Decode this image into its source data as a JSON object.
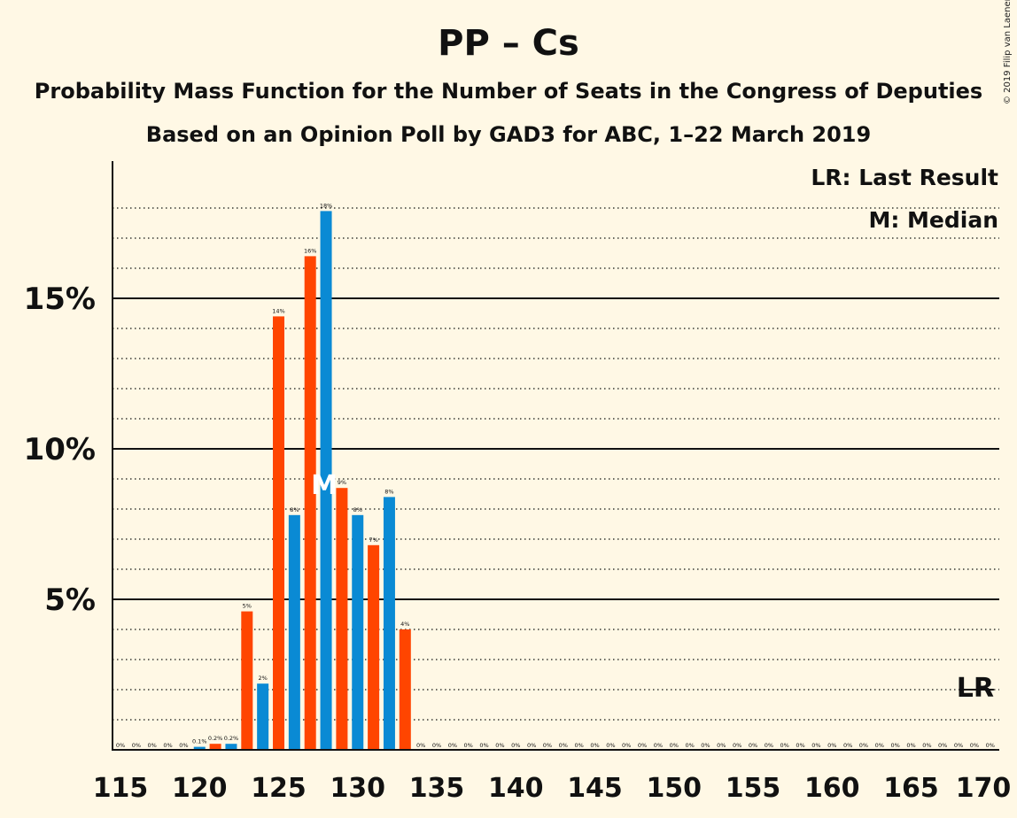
{
  "title": "PP – Cs",
  "subtitle1": "Probability Mass Function for the Number of Seats in the Congress of Deputies",
  "subtitle2": "Based on an Opinion Poll by GAD3 for ABC, 1–22 March 2019",
  "copyright": "© 2019 Filip van Laenen",
  "legend": {
    "lr": "LR: Last Result",
    "m": "M: Median"
  },
  "markers": {
    "median_label": "M",
    "last_result_label": "LR"
  },
  "colors": {
    "background": "#fff8e5",
    "orange": "#ff4500",
    "blue": "#0a8ad4",
    "text": "#111111"
  },
  "chart_data": {
    "type": "bar",
    "xlim": [
      115,
      170
    ],
    "ylim": [
      0,
      19
    ],
    "x_ticks": [
      "115",
      "120",
      "125",
      "130",
      "135",
      "140",
      "145",
      "150",
      "155",
      "160",
      "165",
      "170"
    ],
    "y_ticks": [
      {
        "value": 5,
        "label": "5%"
      },
      {
        "value": 10,
        "label": "10%"
      },
      {
        "value": 15,
        "label": "15%"
      }
    ],
    "minor_gridlines": [
      1,
      2,
      3,
      4,
      6,
      7,
      8,
      9,
      11,
      12,
      13,
      14,
      16,
      17,
      18
    ],
    "bars": [
      {
        "seats": 115,
        "value": 0,
        "label": "0%",
        "color": "orange"
      },
      {
        "seats": 116,
        "value": 0,
        "label": "0%",
        "color": "blue"
      },
      {
        "seats": 117,
        "value": 0,
        "label": "0%",
        "color": "orange"
      },
      {
        "seats": 118,
        "value": 0,
        "label": "0%",
        "color": "blue"
      },
      {
        "seats": 119,
        "value": 0,
        "label": "0%",
        "color": "orange"
      },
      {
        "seats": 120,
        "value": 0.1,
        "label": "0.1%",
        "color": "blue"
      },
      {
        "seats": 121,
        "value": 0.2,
        "label": "0.2%",
        "color": "orange"
      },
      {
        "seats": 122,
        "value": 0.2,
        "label": "0.2%",
        "color": "blue"
      },
      {
        "seats": 123,
        "value": 4.6,
        "label": "5%",
        "color": "orange"
      },
      {
        "seats": 124,
        "value": 2.2,
        "label": "2%",
        "color": "blue"
      },
      {
        "seats": 125,
        "value": 14.4,
        "label": "14%",
        "color": "orange"
      },
      {
        "seats": 126,
        "value": 7.8,
        "label": "8%",
        "color": "blue"
      },
      {
        "seats": 127,
        "value": 16.4,
        "label": "16%",
        "color": "orange"
      },
      {
        "seats": 128,
        "value": 17.9,
        "label": "18%",
        "color": "blue"
      },
      {
        "seats": 129,
        "value": 8.7,
        "label": "9%",
        "color": "orange"
      },
      {
        "seats": 130,
        "value": 7.8,
        "label": "8%",
        "color": "blue"
      },
      {
        "seats": 131,
        "value": 6.8,
        "label": "7%",
        "color": "orange"
      },
      {
        "seats": 132,
        "value": 8.4,
        "label": "8%",
        "color": "blue"
      },
      {
        "seats": 133,
        "value": 4.0,
        "label": "4%",
        "color": "orange"
      },
      {
        "seats": 134,
        "value": 0,
        "label": "0%",
        "color": "blue"
      },
      {
        "seats": 135,
        "value": 0,
        "label": "0%",
        "color": "orange"
      },
      {
        "seats": 136,
        "value": 0,
        "label": "0%",
        "color": "blue"
      },
      {
        "seats": 137,
        "value": 0,
        "label": "0%",
        "color": "orange"
      },
      {
        "seats": 138,
        "value": 0,
        "label": "0%",
        "color": "blue"
      },
      {
        "seats": 139,
        "value": 0,
        "label": "0%",
        "color": "orange"
      },
      {
        "seats": 140,
        "value": 0,
        "label": "0%",
        "color": "blue"
      },
      {
        "seats": 141,
        "value": 0,
        "label": "0%",
        "color": "orange"
      },
      {
        "seats": 142,
        "value": 0,
        "label": "0%",
        "color": "blue"
      },
      {
        "seats": 143,
        "value": 0,
        "label": "0%",
        "color": "orange"
      },
      {
        "seats": 144,
        "value": 0,
        "label": "0%",
        "color": "blue"
      },
      {
        "seats": 145,
        "value": 0,
        "label": "0%",
        "color": "orange"
      },
      {
        "seats": 146,
        "value": 0,
        "label": "0%",
        "color": "blue"
      },
      {
        "seats": 147,
        "value": 0,
        "label": "0%",
        "color": "orange"
      },
      {
        "seats": 148,
        "value": 0,
        "label": "0%",
        "color": "blue"
      },
      {
        "seats": 149,
        "value": 0,
        "label": "0%",
        "color": "orange"
      },
      {
        "seats": 150,
        "value": 0,
        "label": "0%",
        "color": "blue"
      },
      {
        "seats": 151,
        "value": 0,
        "label": "0%",
        "color": "orange"
      },
      {
        "seats": 152,
        "value": 0,
        "label": "0%",
        "color": "blue"
      },
      {
        "seats": 153,
        "value": 0,
        "label": "0%",
        "color": "orange"
      },
      {
        "seats": 154,
        "value": 0,
        "label": "0%",
        "color": "blue"
      },
      {
        "seats": 155,
        "value": 0,
        "label": "0%",
        "color": "orange"
      },
      {
        "seats": 156,
        "value": 0,
        "label": "0%",
        "color": "blue"
      },
      {
        "seats": 157,
        "value": 0,
        "label": "0%",
        "color": "orange"
      },
      {
        "seats": 158,
        "value": 0,
        "label": "0%",
        "color": "blue"
      },
      {
        "seats": 159,
        "value": 0,
        "label": "0%",
        "color": "orange"
      },
      {
        "seats": 160,
        "value": 0,
        "label": "0%",
        "color": "blue"
      },
      {
        "seats": 161,
        "value": 0,
        "label": "0%",
        "color": "orange"
      },
      {
        "seats": 162,
        "value": 0,
        "label": "0%",
        "color": "blue"
      },
      {
        "seats": 163,
        "value": 0,
        "label": "0%",
        "color": "orange"
      },
      {
        "seats": 164,
        "value": 0,
        "label": "0%",
        "color": "blue"
      },
      {
        "seats": 165,
        "value": 0,
        "label": "0%",
        "color": "orange"
      },
      {
        "seats": 166,
        "value": 0,
        "label": "0%",
        "color": "blue"
      },
      {
        "seats": 167,
        "value": 0,
        "label": "0%",
        "color": "orange"
      },
      {
        "seats": 168,
        "value": 0,
        "label": "0%",
        "color": "blue"
      },
      {
        "seats": 169,
        "value": 0,
        "label": "0%",
        "color": "orange"
      },
      {
        "seats": 170,
        "value": 0,
        "label": "0%",
        "color": "blue"
      }
    ],
    "median_seats": 128,
    "last_result_seats": 169,
    "last_result_level": 2
  }
}
